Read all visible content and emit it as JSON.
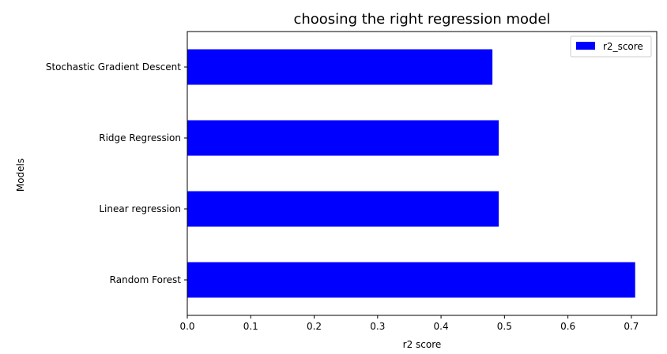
{
  "chart_data": {
    "type": "bar",
    "orientation": "horizontal",
    "title": "choosing the right regression model",
    "xlabel": "r2 score",
    "ylabel": "Models",
    "categories": [
      "Random Forest",
      "Linear regression",
      "Ridge Regression",
      "Stochastic Gradient Descent"
    ],
    "series": [
      {
        "name": "r2_score",
        "values": [
          0.706,
          0.491,
          0.491,
          0.481
        ],
        "color": "#0000ff"
      }
    ],
    "xlim": [
      0,
      0.74
    ],
    "xticks": [
      0.0,
      0.1,
      0.2,
      0.3,
      0.4,
      0.5,
      0.6,
      0.7
    ],
    "xtick_labels": [
      "0.0",
      "0.1",
      "0.2",
      "0.3",
      "0.4",
      "0.5",
      "0.6",
      "0.7"
    ],
    "grid": false,
    "legend_position": "top-right"
  }
}
